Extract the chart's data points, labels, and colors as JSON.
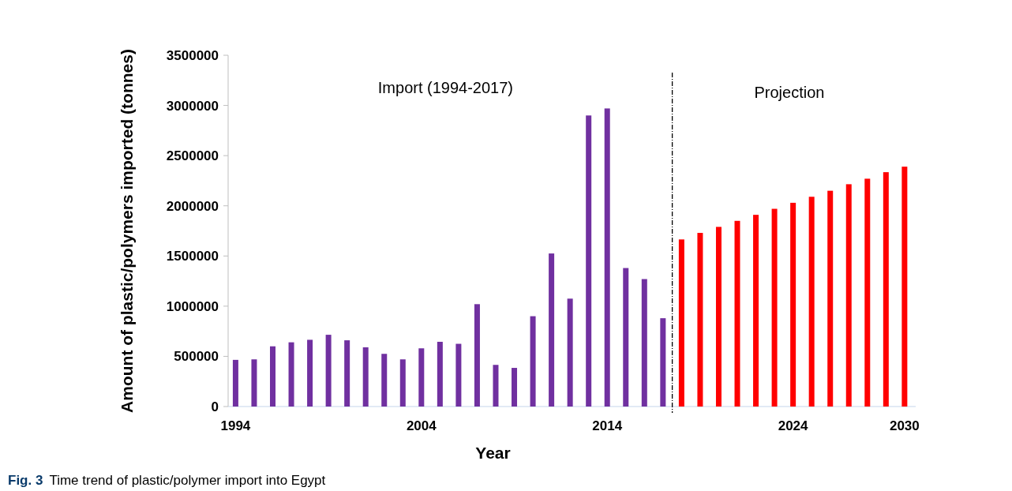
{
  "chart_data": {
    "type": "bar",
    "xlabel": "Year",
    "ylabel": "Amount of plastic/polymers imported (tonnes)",
    "x": [
      1994,
      1995,
      1996,
      1997,
      1998,
      1999,
      2000,
      2001,
      2002,
      2003,
      2004,
      2005,
      2006,
      2007,
      2008,
      2009,
      2010,
      2011,
      2012,
      2013,
      2014,
      2015,
      2016,
      2017,
      2018,
      2019,
      2020,
      2021,
      2022,
      2023,
      2024,
      2025,
      2026,
      2027,
      2028,
      2029,
      2030
    ],
    "values": [
      465000,
      470000,
      600000,
      640000,
      665000,
      715000,
      660000,
      590000,
      525000,
      470000,
      580000,
      645000,
      625000,
      1020000,
      415000,
      385000,
      900000,
      1525000,
      1075000,
      2900000,
      2970000,
      1380000,
      1270000,
      880000,
      1665000,
      1730000,
      1790000,
      1850000,
      1910000,
      1970000,
      2030000,
      2090000,
      2150000,
      2215000,
      2270000,
      2335000,
      2390000
    ],
    "colors": [
      "#7030a0",
      "#7030a0",
      "#7030a0",
      "#7030a0",
      "#7030a0",
      "#7030a0",
      "#7030a0",
      "#7030a0",
      "#7030a0",
      "#7030a0",
      "#7030a0",
      "#7030a0",
      "#7030a0",
      "#7030a0",
      "#7030a0",
      "#7030a0",
      "#7030a0",
      "#7030a0",
      "#7030a0",
      "#7030a0",
      "#7030a0",
      "#7030a0",
      "#7030a0",
      "#7030a0",
      "#ff0000",
      "#ff0000",
      "#ff0000",
      "#ff0000",
      "#ff0000",
      "#ff0000",
      "#ff0000",
      "#ff0000",
      "#ff0000",
      "#ff0000",
      "#ff0000",
      "#ff0000",
      "#ff0000"
    ],
    "xlim": [
      1993.6,
      2030.6
    ],
    "xticks": [
      1994,
      2004,
      2014,
      2024,
      2030
    ],
    "ylim": [
      0,
      3500000
    ],
    "yticks": [
      0,
      500000,
      1000000,
      1500000,
      2000000,
      2500000,
      3000000,
      3500000
    ],
    "ref_lines": [
      {
        "axis": "x",
        "value": 2017.5,
        "color": "#000000",
        "line_style": "dashed"
      }
    ],
    "annotations": [
      "Import (1994-2017)",
      "Projection",
      "Fig. 3",
      "Time trend of plastic/polymer import into Egypt"
    ],
    "grid": false
  }
}
